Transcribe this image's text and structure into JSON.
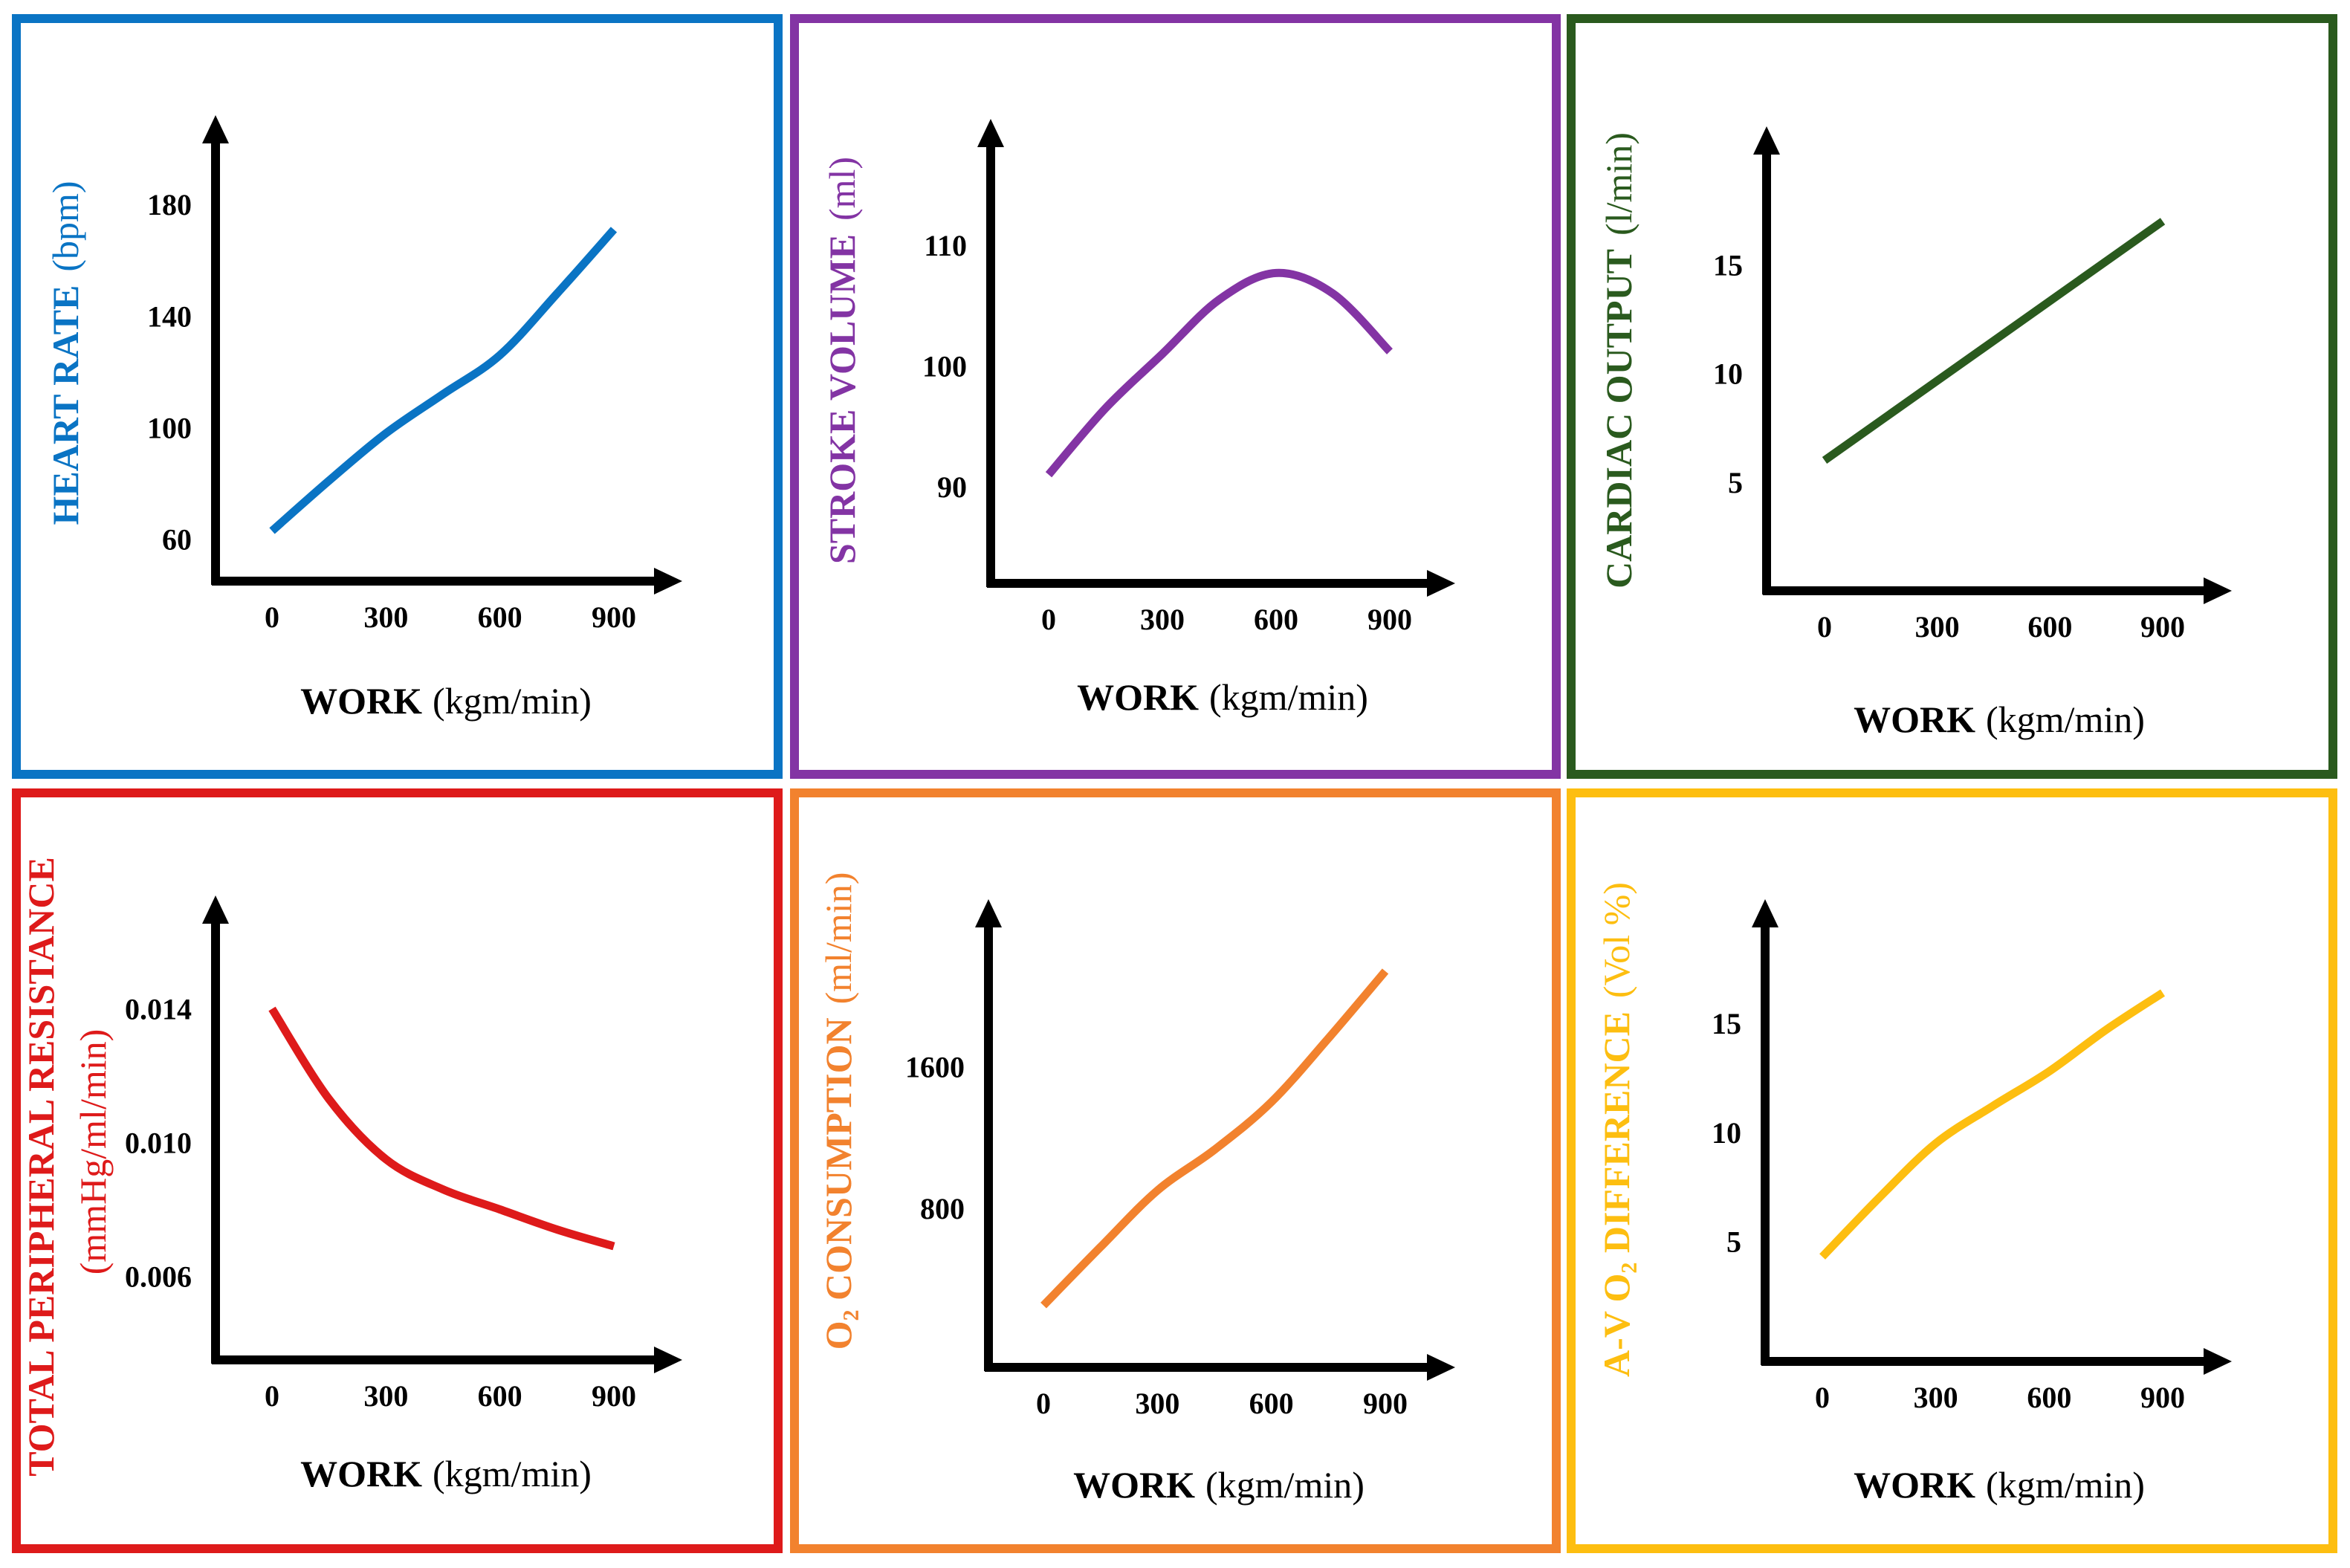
{
  "colors": {
    "heart_rate": "#0A74C4",
    "stroke_volume": "#8334A4",
    "cardiac_output": "#2A5A1E",
    "tpr": "#DE1A1A",
    "o2_consumption": "#F2822E",
    "av_diff": "#FDBE10",
    "axis": "#000000"
  },
  "chart_data": [
    {
      "id": "heart_rate",
      "type": "line",
      "title": "HEART RATE",
      "yunit": "(bpm)",
      "xlabel": "WORK",
      "xunit": "(kgm/min)",
      "xticks": [
        "0",
        "300",
        "600",
        "900"
      ],
      "yticks": [
        "60",
        "100",
        "140",
        "180"
      ],
      "ytick_values": [
        60,
        100,
        140,
        180
      ],
      "xlim": [
        -100,
        1000
      ],
      "ylim": [
        45,
        200
      ],
      "x": [
        0,
        150,
        300,
        450,
        600,
        750,
        900
      ],
      "y": [
        63,
        81,
        98,
        112,
        126,
        148,
        171
      ]
    },
    {
      "id": "stroke_volume",
      "type": "line",
      "title": "STROKE VOLUME",
      "yunit": "(ml)",
      "xlabel": "WORK",
      "xunit": "(kgm/min)",
      "xticks": [
        "0",
        "300",
        "600",
        "900"
      ],
      "yticks": [
        "90",
        "100",
        "110"
      ],
      "ytick_values": [
        90,
        100,
        110
      ],
      "xlim": [
        -100,
        1000
      ],
      "ylim": [
        82,
        118
      ],
      "x": [
        0,
        150,
        300,
        450,
        600,
        750,
        900
      ],
      "y": [
        91,
        96.5,
        101,
        105.5,
        107.7,
        106,
        101.2
      ]
    },
    {
      "id": "cardiac_output",
      "type": "line",
      "title": "CARDIAC OUTPUT",
      "yunit": "(l/min)",
      "xlabel": "WORK",
      "xunit": "(kgm/min)",
      "xticks": [
        "0",
        "300",
        "600",
        "900"
      ],
      "yticks": [
        "5",
        "10",
        "15"
      ],
      "ytick_values": [
        5,
        10,
        15
      ],
      "xlim": [
        -100,
        1000
      ],
      "ylim": [
        0,
        20
      ],
      "x": [
        0,
        900
      ],
      "y": [
        6,
        17
      ]
    },
    {
      "id": "tpr",
      "type": "line",
      "title": "TOTAL PERIPHERAL RESISTANCE",
      "yunit": "(mmHg/ml/min)",
      "xlabel": "WORK",
      "xunit": "(kgm/min)",
      "xticks": [
        "0",
        "300",
        "600",
        "900"
      ],
      "yticks": [
        "0.006",
        "0.010",
        "0.014"
      ],
      "ytick_values": [
        0.006,
        0.01,
        0.014
      ],
      "xlim": [
        -100,
        1000
      ],
      "ylim": [
        0.0035,
        0.0165
      ],
      "x": [
        0,
        150,
        300,
        450,
        600,
        750,
        900
      ],
      "y": [
        0.014,
        0.0113,
        0.0095,
        0.0086,
        0.008,
        0.0074,
        0.0069
      ]
    },
    {
      "id": "o2_consumption",
      "type": "line",
      "title": "O₂ CONSUMPTION",
      "yunit": "(ml/min)",
      "xlabel": "WORK",
      "xunit": "(kgm/min)",
      "xticks": [
        "0",
        "300",
        "600",
        "900"
      ],
      "yticks": [
        "800",
        "1600"
      ],
      "ytick_values": [
        800,
        1600
      ],
      "xlim": [
        -100,
        1000
      ],
      "ylim": [
        -100,
        2400
      ],
      "x": [
        0,
        150,
        300,
        450,
        600,
        750,
        900
      ],
      "y": [
        250,
        580,
        900,
        1130,
        1400,
        1760,
        2140
      ]
    },
    {
      "id": "av_diff",
      "type": "line",
      "title": "A-V O₂ DIFFERENCE",
      "yunit": "(Vol %)",
      "xlabel": "WORK",
      "xunit": "(kgm/min)",
      "xticks": [
        "0",
        "300",
        "600",
        "900"
      ],
      "yticks": [
        "5",
        "10",
        "15"
      ],
      "ytick_values": [
        5,
        10,
        15
      ],
      "xlim": [
        -100,
        1000
      ],
      "ylim": [
        -0.5,
        19.5
      ],
      "x": [
        0,
        150,
        300,
        450,
        600,
        750,
        900
      ],
      "y": [
        4.3,
        7.0,
        9.5,
        11.2,
        12.8,
        14.7,
        16.4
      ]
    }
  ]
}
